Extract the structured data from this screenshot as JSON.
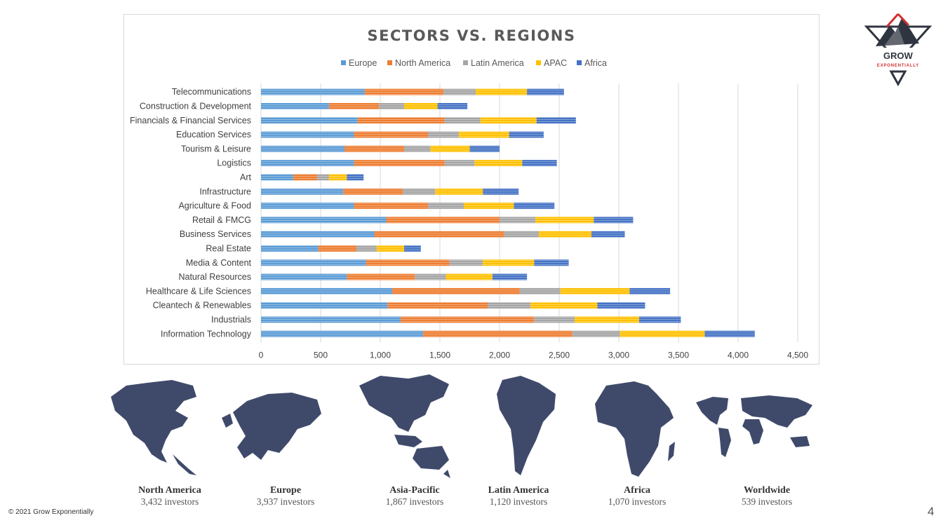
{
  "chart_data": {
    "type": "bar",
    "orientation": "horizontal",
    "stacked": true,
    "title": "SECTORS VS. REGIONS",
    "xlabel": "",
    "ylabel": "",
    "xlim": [
      0,
      4500
    ],
    "xticks": [
      0,
      500,
      1000,
      1500,
      2000,
      2500,
      3000,
      3500,
      4000,
      4500
    ],
    "xtick_labels": [
      "0",
      "500",
      "1,000",
      "1,500",
      "2,000",
      "2,500",
      "3,000",
      "3,500",
      "4,000",
      "4,500"
    ],
    "grid": true,
    "legend_position": "top",
    "categories": [
      "Telecommunications",
      "Construction & Development",
      "Financials & Financial Services",
      "Education Services",
      "Tourism & Leisure",
      "Logistics",
      "Art",
      "Infrastructure",
      "Agriculture & Food",
      "Retail & FMCG",
      "Business Services",
      "Real Estate",
      "Media & Content",
      "Natural Resources",
      "Healthcare & Life Sciences",
      "Cleantech & Renewables",
      "Industrials",
      "Information Technology"
    ],
    "series": [
      {
        "name": "Europe",
        "color": "#5B9BD5",
        "values": [
          870,
          570,
          810,
          780,
          700,
          780,
          270,
          690,
          780,
          1050,
          950,
          480,
          880,
          720,
          1100,
          1060,
          1170,
          1360
        ]
      },
      {
        "name": "North America",
        "color": "#ED7D31",
        "values": [
          660,
          420,
          730,
          620,
          500,
          760,
          200,
          500,
          620,
          950,
          1090,
          320,
          700,
          570,
          1070,
          840,
          1120,
          1250
        ]
      },
      {
        "name": "Latin America",
        "color": "#A5A5A5",
        "values": [
          270,
          210,
          300,
          260,
          220,
          250,
          100,
          270,
          300,
          300,
          290,
          170,
          280,
          260,
          340,
          360,
          340,
          400
        ]
      },
      {
        "name": "APAC",
        "color": "#FFC000",
        "values": [
          430,
          280,
          470,
          420,
          330,
          400,
          150,
          400,
          420,
          490,
          440,
          230,
          430,
          390,
          580,
          560,
          540,
          710
        ]
      },
      {
        "name": "Africa",
        "color": "#4472C4",
        "values": [
          310,
          250,
          330,
          290,
          250,
          290,
          140,
          300,
          340,
          330,
          280,
          140,
          290,
          290,
          340,
          400,
          350,
          420
        ]
      }
    ]
  },
  "regions": [
    {
      "name": "North America",
      "count": "3,432 investors"
    },
    {
      "name": "Europe",
      "count": "3,937 investors"
    },
    {
      "name": "Asia-Pacific",
      "count": "1,867 investors"
    },
    {
      "name": "Latin America",
      "count": "1,120 investors"
    },
    {
      "name": "Africa",
      "count": "1,070 investors"
    },
    {
      "name": "Worldwide",
      "count": "539 investors"
    }
  ],
  "logo": {
    "word1": "GROW",
    "word2": "EXPONENTIALLY",
    "accent": "#D32F2F",
    "dark": "#2f3540"
  },
  "map_color": "#3f4a6b",
  "footer": {
    "copyright": "© 2021  Grow Exponentially",
    "page_number": "4"
  }
}
